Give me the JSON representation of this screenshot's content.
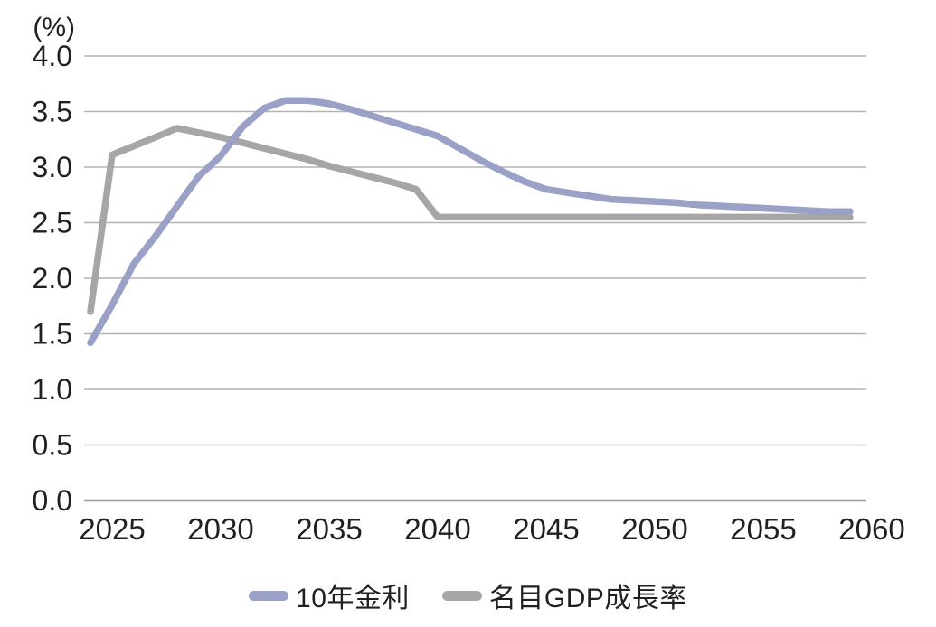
{
  "chart_data": {
    "type": "line",
    "title": "",
    "unit_label": "(%)",
    "xlabel": "",
    "ylabel": "(%)",
    "ylim": [
      0.0,
      4.0
    ],
    "grid": true,
    "legend_position": "bottom",
    "x": [
      2024,
      2025,
      2026,
      2027,
      2028,
      2029,
      2030,
      2031,
      2032,
      2033,
      2034,
      2035,
      2036,
      2037,
      2038,
      2039,
      2040,
      2041,
      2042,
      2043,
      2044,
      2045,
      2046,
      2047,
      2048,
      2049,
      2050,
      2051,
      2052,
      2053,
      2054,
      2055,
      2056,
      2057,
      2058,
      2059
    ],
    "x_tick_labels": [
      "2025",
      "2030",
      "2035",
      "2040",
      "2045",
      "2050",
      "2055",
      "2060"
    ],
    "x_tick_values": [
      2025,
      2030,
      2035,
      2040,
      2045,
      2050,
      2055,
      2060
    ],
    "y_tick_labels": [
      "0.0",
      "0.5",
      "1.0",
      "1.5",
      "2.0",
      "2.5",
      "3.0",
      "3.5",
      "4.0"
    ],
    "y_tick_values": [
      0.0,
      0.5,
      1.0,
      1.5,
      2.0,
      2.5,
      3.0,
      3.5,
      4.0
    ],
    "series": [
      {
        "name": "10年金利",
        "color": "#9aa0c6",
        "values": [
          1.42,
          1.76,
          2.13,
          2.38,
          2.65,
          2.92,
          3.1,
          3.36,
          3.53,
          3.6,
          3.6,
          3.57,
          3.52,
          3.46,
          3.4,
          3.34,
          3.28,
          3.17,
          3.06,
          2.96,
          2.87,
          2.8,
          2.77,
          2.74,
          2.71,
          2.7,
          2.69,
          2.68,
          2.66,
          2.65,
          2.64,
          2.63,
          2.62,
          2.61,
          2.6,
          2.6
        ]
      },
      {
        "name": "名目GDP成長率",
        "color": "#a6a6a6",
        "values": [
          1.7,
          3.11,
          3.19,
          3.27,
          3.35,
          3.31,
          3.27,
          3.22,
          3.17,
          3.12,
          3.07,
          3.01,
          2.96,
          2.91,
          2.86,
          2.8,
          2.55,
          2.55,
          2.55,
          2.55,
          2.55,
          2.55,
          2.55,
          2.55,
          2.55,
          2.55,
          2.55,
          2.55,
          2.55,
          2.55,
          2.55,
          2.55,
          2.55,
          2.55,
          2.55,
          2.55
        ]
      }
    ],
    "colors": {
      "gridline": "#b3b3b3",
      "axis_line": "#9e9e9e",
      "text": "#231f1f",
      "background": "#ffffff"
    }
  }
}
